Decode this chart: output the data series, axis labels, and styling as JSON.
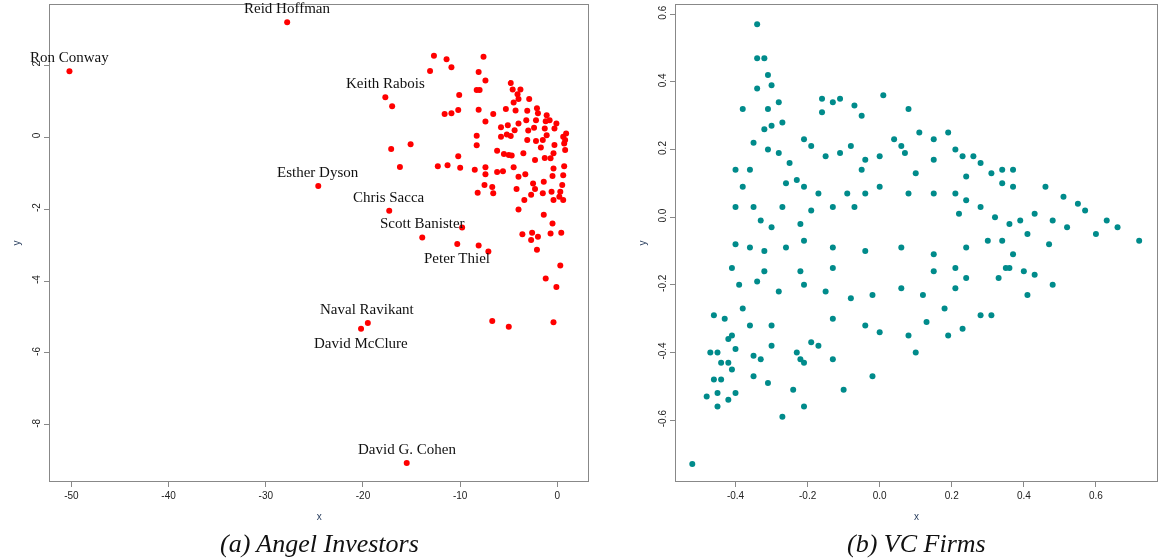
{
  "chart_data": [
    {
      "type": "scatter",
      "title": "(a) Angel Investors",
      "xlabel": "x",
      "ylabel": "y",
      "color": "#ff0000",
      "marker": "circle",
      "xlim": [
        -52.2,
        3.2
      ],
      "ylim": [
        -9.56,
        3.67
      ],
      "xticks": [
        -50,
        -40,
        -30,
        -20,
        -10,
        0
      ],
      "yticks": [
        -8,
        -6,
        -4,
        -2,
        0,
        2
      ],
      "x": [
        -27.8,
        -50.2,
        -17.7,
        -17.0,
        -24.6,
        -17.3,
        -13.9,
        -10.3,
        -19.5,
        -20.2,
        -15.5,
        -12.7,
        -11.4,
        -13.1,
        -10.9,
        -7.6,
        -8.1,
        -7.4,
        -10.1,
        -8.3,
        -8.0,
        -11.6,
        -10.9,
        -10.2,
        -8.1,
        -7.4,
        -6.6,
        -17.1,
        -15.1,
        -16.2,
        -12.3,
        -11.3,
        -10.2,
        -10.0,
        -8.3,
        -8.3,
        -8.5,
        -7.4,
        -7.4,
        -8.2,
        -7.5,
        -6.7,
        -6.6,
        -6.2,
        -5.6,
        -6.2,
        -5.8,
        -5.8,
        -5.2,
        -5.3,
        -4.8,
        -4.6,
        -4.1,
        -4.0,
        -4.5,
        -4.3,
        -3.8,
        -5.1,
        -4.8,
        -5.5,
        -5.0,
        -4.7,
        -4.5,
        -4.0,
        -4.2,
        -3.4,
        -4.0,
        -4.4,
        -4.0,
        -3.5,
        -3.3,
        -3.1,
        -2.9,
        -3.2,
        -3.1,
        -3.0,
        -2.5,
        -2.7,
        -2.3,
        -2.3,
        -2.4,
        -2.1,
        -2.2,
        -2.0,
        -2.2,
        -1.5,
        -1.7,
        -1.3,
        -1.1,
        -1.2,
        -1.4,
        -1.5,
        -0.8,
        -1.1,
        -1.3,
        -0.7,
        -0.4,
        -0.3,
        -0.1,
        -0.3,
        -0.4,
        -0.6,
        -0.4,
        -0.5,
        0.9,
        0.8,
        0.8,
        0.7,
        0.6,
        0.5,
        0.6,
        0.2,
        0.7,
        0.6,
        0.3,
        -1.4,
        -0.5,
        0.4,
        -0.7,
        -2.0,
        -2.6,
        -2.7,
        -3.6,
        -2.1,
        -9.8,
        -8.1,
        -7.1,
        0.3,
        -1.2,
        -0.1,
        -6.7,
        -5.0,
        -0.4
      ],
      "values": [
        3.19,
        1.83,
        1.11,
        0.86,
        -1.36,
        -2.05,
        -2.79,
        -2.97,
        -5.17,
        -5.33,
        -9.06,
        2.26,
        2.16,
        1.84,
        1.94,
        2.23,
        1.81,
        1.57,
        1.17,
        1.31,
        1.31,
        0.64,
        0.66,
        0.75,
        0.76,
        0.43,
        0.64,
        -0.33,
        -0.2,
        -0.83,
        -0.81,
        -0.78,
        -0.53,
        -0.85,
        0.04,
        -0.23,
        -0.91,
        -0.84,
        -1.03,
        -1.55,
        -1.33,
        -1.39,
        -1.56,
        -0.97,
        -0.95,
        -0.38,
        0.01,
        0.27,
        0.07,
        0.78,
        1.5,
        1.32,
        1.19,
        1.06,
        0.96,
        0.74,
        1.32,
        0.33,
        0.03,
        -0.47,
        -0.5,
        -0.51,
        -0.84,
        -1.1,
        -1.44,
        -1.75,
        -2.01,
        0.19,
        0.38,
        -0.45,
        -1.03,
        0.73,
        1.06,
        0.47,
        -0.08,
        0.18,
        -1.29,
        -1.6,
        -1.44,
        -0.64,
        0.26,
        0.8,
        0.47,
        0.66,
        -0.11,
        -0.08,
        -0.29,
        0.24,
        0.61,
        0.44,
        -1.24,
        -1.56,
        0.47,
        0.05,
        -0.58,
        -0.59,
        -0.87,
        0.24,
        0.38,
        -0.22,
        -0.45,
        -1.52,
        -1.75,
        -1.08,
        0.1,
        -0.08,
        -0.36,
        -0.81,
        -1.06,
        -1.33,
        -1.75,
        -1.66,
        -0.18,
        0.01,
        -1.52,
        -2.16,
        -2.4,
        -2.66,
        -2.68,
        -2.77,
        -2.66,
        -2.86,
        -2.7,
        -3.13,
        -2.51,
        -3.01,
        -3.18,
        -3.57,
        -3.93,
        -4.17,
        -5.11,
        -5.27,
        -5.15
      ],
      "annotations": [
        {
          "text": "Reid Hoffman",
          "x": -27.8,
          "y": 3.19
        },
        {
          "text": "Ron Conway",
          "x": -50.2,
          "y": 1.83
        },
        {
          "text": "Keith Rabois",
          "x": -17.7,
          "y": 1.11
        },
        {
          "text": "Esther Dyson",
          "x": -24.6,
          "y": -1.36
        },
        {
          "text": "Chris Sacca",
          "x": -17.3,
          "y": -2.05
        },
        {
          "text": "Scott Banister",
          "x": -13.9,
          "y": -2.79
        },
        {
          "text": "Peter Thiel",
          "x": -10.3,
          "y": -2.97
        },
        {
          "text": "Naval Ravikant",
          "x": -19.5,
          "y": -5.17
        },
        {
          "text": "David McClure",
          "x": -20.2,
          "y": -5.33
        },
        {
          "text": "David G. Cohen",
          "x": -15.5,
          "y": -9.06
        }
      ]
    },
    {
      "type": "scatter",
      "title": "(b) VC Firms",
      "xlabel": "x",
      "ylabel": "y",
      "color": "#008b8b",
      "marker": "circle",
      "xlim": [
        -0.566,
        0.77
      ],
      "ylim": [
        -0.78,
        0.627
      ],
      "xticks": [
        -0.4,
        -0.2,
        {
          "value": 0,
          "label": "0.0"
        },
        0.2,
        0.4,
        0.6
      ],
      "yticks": [
        -0.6,
        -0.4,
        -0.2,
        {
          "value": 0,
          "label": "0.0"
        },
        0.2,
        0.4,
        0.6
      ],
      "x": [
        -0.34,
        -0.34,
        -0.32,
        -0.34,
        -0.3,
        -0.31,
        -0.28,
        -0.38,
        -0.31,
        -0.3,
        -0.32,
        -0.27,
        -0.31,
        -0.28,
        -0.35,
        -0.4,
        -0.36,
        -0.25,
        -0.23,
        -0.26,
        -0.21,
        -0.21,
        -0.16,
        -0.11,
        -0.13,
        -0.07,
        -0.05,
        0.01,
        0.08,
        -0.16,
        -0.19,
        -0.15,
        -0.11,
        -0.08,
        -0.04,
        -0.05,
        0.0,
        0.04,
        0.06,
        0.07,
        0.1,
        0.11,
        0.15,
        0.19,
        0.15,
        0.21,
        0.23,
        0.26,
        0.28,
        0.24,
        0.31,
        0.34,
        0.37,
        0.34,
        0.37,
        0.46,
        0.51,
        0.55,
        0.57,
        0.63,
        0.66,
        0.72,
        0.6,
        0.52,
        0.48,
        0.43,
        0.39,
        0.41,
        0.47,
        0.36,
        0.32,
        0.28,
        0.24,
        0.21,
        0.22,
        0.34,
        0.37,
        0.35,
        -0.4,
        -0.4,
        -0.38,
        -0.35,
        -0.33,
        -0.3,
        -0.27,
        -0.22,
        -0.19,
        -0.17,
        -0.13,
        -0.09,
        -0.07,
        -0.04,
        0.0,
        0.08,
        0.15,
        -0.36,
        -0.32,
        -0.26,
        -0.21,
        -0.13,
        -0.04,
        0.06,
        0.15,
        0.24,
        0.3,
        -0.41,
        -0.52,
        -0.48,
        -0.45,
        -0.46,
        -0.47,
        -0.45,
        -0.45,
        -0.42,
        -0.44,
        -0.44,
        -0.42,
        -0.41,
        -0.46,
        -0.43,
        -0.42,
        -0.41,
        -0.4,
        -0.4,
        -0.35,
        -0.35,
        -0.33,
        -0.31,
        -0.3,
        -0.27,
        -0.24,
        -0.21,
        -0.23,
        -0.22,
        -0.21,
        -0.17,
        -0.13,
        -0.1,
        -0.02,
        0.1,
        0.19,
        0.23,
        0.28,
        0.31,
        0.48,
        0.41,
        0.43,
        0.4,
        0.36,
        0.33,
        0.18,
        0.13,
        0.08,
        0.0,
        -0.04,
        -0.13,
        -0.19,
        -0.3,
        -0.36,
        -0.38,
        -0.39,
        -0.34,
        -0.28,
        -0.21,
        -0.15,
        -0.08,
        -0.02,
        0.06,
        0.12,
        0.21,
        0.24,
        0.15,
        0.21,
        -0.13,
        -0.22,
        -0.32
      ],
      "values": [
        0.57,
        0.47,
        0.47,
        0.38,
        0.39,
        0.42,
        0.34,
        0.32,
        0.32,
        0.27,
        0.26,
        0.28,
        0.2,
        0.19,
        0.22,
        0.14,
        0.14,
        0.16,
        0.11,
        0.1,
        0.09,
        0.23,
        0.35,
        0.35,
        0.34,
        0.33,
        0.3,
        0.36,
        0.32,
        0.31,
        0.21,
        0.18,
        0.19,
        0.21,
        0.17,
        0.14,
        0.18,
        0.23,
        0.21,
        0.19,
        0.13,
        0.25,
        0.23,
        0.25,
        0.17,
        0.2,
        0.18,
        0.18,
        0.16,
        0.12,
        0.13,
        0.14,
        0.14,
        0.1,
        0.09,
        0.09,
        0.06,
        0.04,
        0.02,
        -0.01,
        -0.03,
        -0.07,
        -0.05,
        -0.03,
        -0.01,
        0.01,
        -0.01,
        -0.05,
        -0.08,
        -0.02,
        0.0,
        0.03,
        0.05,
        0.07,
        0.01,
        -0.07,
        -0.11,
        -0.15,
        -0.08,
        0.03,
        0.09,
        0.03,
        -0.01,
        -0.03,
        0.03,
        -0.02,
        0.02,
        0.07,
        0.03,
        0.07,
        0.03,
        0.07,
        0.09,
        0.07,
        0.07,
        -0.09,
        -0.1,
        -0.09,
        -0.07,
        -0.09,
        -0.1,
        -0.09,
        -0.11,
        -0.09,
        -0.07,
        -0.15,
        -0.73,
        -0.53,
        -0.56,
        -0.48,
        -0.4,
        -0.4,
        -0.52,
        -0.54,
        -0.48,
        -0.43,
        -0.43,
        -0.45,
        -0.29,
        -0.3,
        -0.36,
        -0.35,
        -0.39,
        -0.52,
        -0.47,
        -0.41,
        -0.42,
        -0.49,
        -0.38,
        -0.59,
        -0.51,
        -0.56,
        -0.4,
        -0.42,
        -0.43,
        -0.38,
        -0.42,
        -0.51,
        -0.47,
        -0.4,
        -0.35,
        -0.33,
        -0.29,
        -0.29,
        -0.2,
        -0.23,
        -0.17,
        -0.16,
        -0.15,
        -0.18,
        -0.27,
        -0.31,
        -0.35,
        -0.34,
        -0.32,
        -0.3,
        -0.37,
        -0.32,
        -0.32,
        -0.27,
        -0.2,
        -0.19,
        -0.22,
        -0.2,
        -0.22,
        -0.24,
        -0.23,
        -0.21,
        -0.23,
        -0.21,
        -0.18,
        -0.16,
        -0.15,
        -0.15,
        -0.16,
        -0.16
      ]
    }
  ]
}
